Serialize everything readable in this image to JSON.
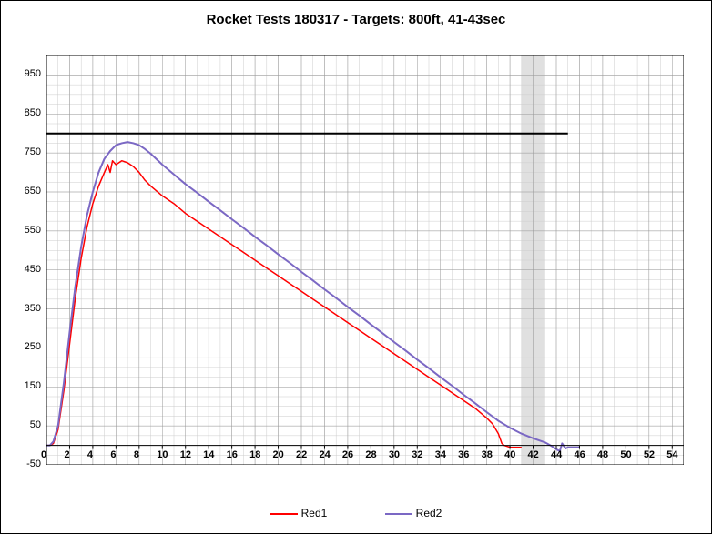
{
  "chart": {
    "type": "line",
    "title": "Rocket Tests 180317 - Targets: 800ft, 41-43sec",
    "title_fontsize": 15,
    "background_color": "#ffffff",
    "grid_minor_color": "#cccccc",
    "grid_major_color": "#999999",
    "shaded_band": {
      "x_start": 41,
      "x_end": 43,
      "color": "#e0e0e0"
    },
    "target_line": {
      "y": 800,
      "color": "#000000",
      "width": 2
    },
    "axis_color": "#000000",
    "xlim": [
      0,
      55
    ],
    "ylim": [
      -50,
      1000
    ],
    "x_tick_minor_step": 1,
    "x_tick_label_step": 2,
    "y_tick_minor_step": 25,
    "y_tick_label_step": 100,
    "y_tick_label_start": -50,
    "x_labels": [
      "0",
      "2",
      "4",
      "6",
      "8",
      "10",
      "12",
      "14",
      "16",
      "18",
      "20",
      "22",
      "24",
      "26",
      "28",
      "30",
      "32",
      "34",
      "36",
      "38",
      "40",
      "42",
      "44",
      "46",
      "48",
      "50",
      "52",
      "54"
    ],
    "y_labels": [
      "-50",
      "50",
      "150",
      "250",
      "350",
      "450",
      "550",
      "650",
      "750",
      "850",
      "950"
    ],
    "series": [
      {
        "name": "Red1",
        "color": "#ff0000",
        "width": 1.5,
        "data": [
          [
            0,
            0
          ],
          [
            0.3,
            0
          ],
          [
            0.6,
            5
          ],
          [
            1,
            40
          ],
          [
            1.5,
            140
          ],
          [
            2,
            260
          ],
          [
            2.5,
            380
          ],
          [
            3,
            480
          ],
          [
            3.5,
            560
          ],
          [
            4,
            620
          ],
          [
            4.5,
            665
          ],
          [
            5,
            700
          ],
          [
            5.3,
            720
          ],
          [
            5.5,
            700
          ],
          [
            5.7,
            730
          ],
          [
            6,
            720
          ],
          [
            6.5,
            730
          ],
          [
            7,
            725
          ],
          [
            7.5,
            715
          ],
          [
            8,
            700
          ],
          [
            8.5,
            680
          ],
          [
            9,
            665
          ],
          [
            10,
            640
          ],
          [
            11,
            620
          ],
          [
            12,
            595
          ],
          [
            13,
            575
          ],
          [
            14,
            555
          ],
          [
            15,
            535
          ],
          [
            16,
            515
          ],
          [
            17,
            495
          ],
          [
            18,
            475
          ],
          [
            19,
            455
          ],
          [
            20,
            435
          ],
          [
            21,
            415
          ],
          [
            22,
            395
          ],
          [
            23,
            375
          ],
          [
            24,
            355
          ],
          [
            25,
            335
          ],
          [
            26,
            315
          ],
          [
            27,
            295
          ],
          [
            28,
            275
          ],
          [
            29,
            255
          ],
          [
            30,
            235
          ],
          [
            31,
            215
          ],
          [
            32,
            195
          ],
          [
            33,
            175
          ],
          [
            34,
            155
          ],
          [
            35,
            135
          ],
          [
            36,
            115
          ],
          [
            37,
            95
          ],
          [
            38,
            70
          ],
          [
            38.5,
            55
          ],
          [
            39,
            30
          ],
          [
            39.3,
            5
          ],
          [
            39.5,
            0
          ],
          [
            40,
            -5
          ],
          [
            40.5,
            -5
          ],
          [
            41,
            -5
          ]
        ]
      },
      {
        "name": "Red2",
        "color": "#7b68c4",
        "width": 2,
        "data": [
          [
            0,
            0
          ],
          [
            0.3,
            0
          ],
          [
            0.6,
            10
          ],
          [
            1,
            50
          ],
          [
            1.5,
            160
          ],
          [
            2,
            290
          ],
          [
            2.5,
            410
          ],
          [
            3,
            510
          ],
          [
            3.5,
            590
          ],
          [
            4,
            650
          ],
          [
            4.5,
            700
          ],
          [
            5,
            735
          ],
          [
            5.5,
            755
          ],
          [
            6,
            770
          ],
          [
            6.5,
            775
          ],
          [
            7,
            778
          ],
          [
            7.5,
            775
          ],
          [
            8,
            770
          ],
          [
            8.5,
            760
          ],
          [
            9,
            748
          ],
          [
            10,
            720
          ],
          [
            11,
            695
          ],
          [
            12,
            670
          ],
          [
            13,
            648
          ],
          [
            14,
            625
          ],
          [
            15,
            603
          ],
          [
            16,
            580
          ],
          [
            17,
            558
          ],
          [
            18,
            535
          ],
          [
            19,
            513
          ],
          [
            20,
            490
          ],
          [
            21,
            468
          ],
          [
            22,
            445
          ],
          [
            23,
            423
          ],
          [
            24,
            400
          ],
          [
            25,
            378
          ],
          [
            26,
            355
          ],
          [
            27,
            333
          ],
          [
            28,
            310
          ],
          [
            29,
            288
          ],
          [
            30,
            265
          ],
          [
            31,
            243
          ],
          [
            32,
            220
          ],
          [
            33,
            198
          ],
          [
            34,
            175
          ],
          [
            35,
            153
          ],
          [
            36,
            130
          ],
          [
            37,
            108
          ],
          [
            38,
            85
          ],
          [
            39,
            63
          ],
          [
            40,
            45
          ],
          [
            41,
            30
          ],
          [
            42,
            18
          ],
          [
            43,
            8
          ],
          [
            43.5,
            0
          ],
          [
            44,
            -10
          ],
          [
            44.3,
            -15
          ],
          [
            44.5,
            5
          ],
          [
            44.8,
            -8
          ],
          [
            45,
            -5
          ],
          [
            45.5,
            -5
          ],
          [
            46,
            -5
          ]
        ]
      }
    ],
    "legend": {
      "items": [
        {
          "label": "Red1",
          "color": "#ff0000"
        },
        {
          "label": "Red2",
          "color": "#7b68c4"
        }
      ]
    }
  }
}
